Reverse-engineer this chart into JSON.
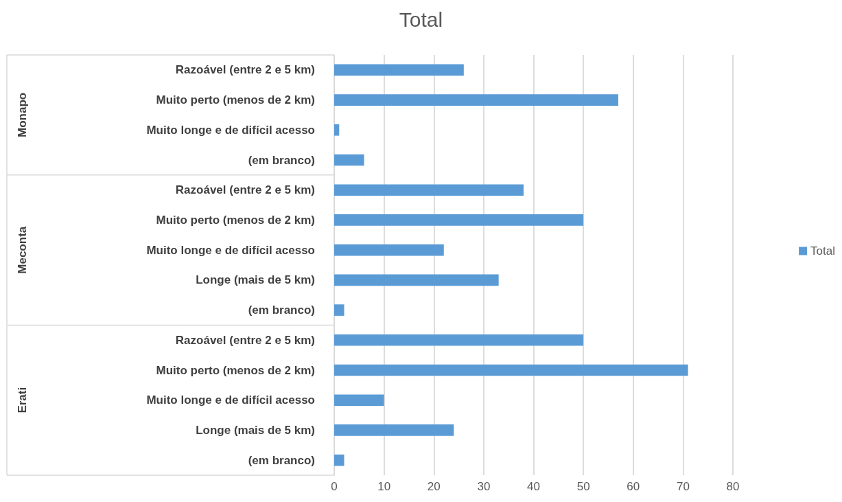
{
  "chart_data": {
    "type": "bar",
    "title": "Total",
    "orientation": "horizontal",
    "categories": [
      "Razoável (entre 2 e 5 km)",
      "Muito perto (menos de 2 km)",
      "Muito longe e de difícil acesso",
      "(em branco)",
      "Razoável (entre 2 e 5 km)",
      "Muito perto (menos de 2 km)",
      "Muito longe e de difícil acesso",
      "Longe (mais de 5 km)",
      "(em branco)",
      "Razoável (entre 2 e 5 km)",
      "Muito perto (menos de 2 km)",
      "Muito longe e de difícil acesso",
      "Longe (mais de 5 km)",
      "(em branco)"
    ],
    "series": [
      {
        "name": "Total",
        "color": "#5b9bd5",
        "values": [
          26,
          57,
          1,
          6,
          38,
          50,
          22,
          33,
          2,
          50,
          71,
          10,
          24,
          2
        ]
      }
    ],
    "annotations": [
      "Monapo",
      "Meconta",
      "Erati"
    ],
    "xlim": [
      0,
      80
    ],
    "xticks": [
      0,
      10,
      20,
      30,
      40,
      50,
      60,
      70,
      80
    ],
    "grid": "x",
    "legend": "right"
  }
}
